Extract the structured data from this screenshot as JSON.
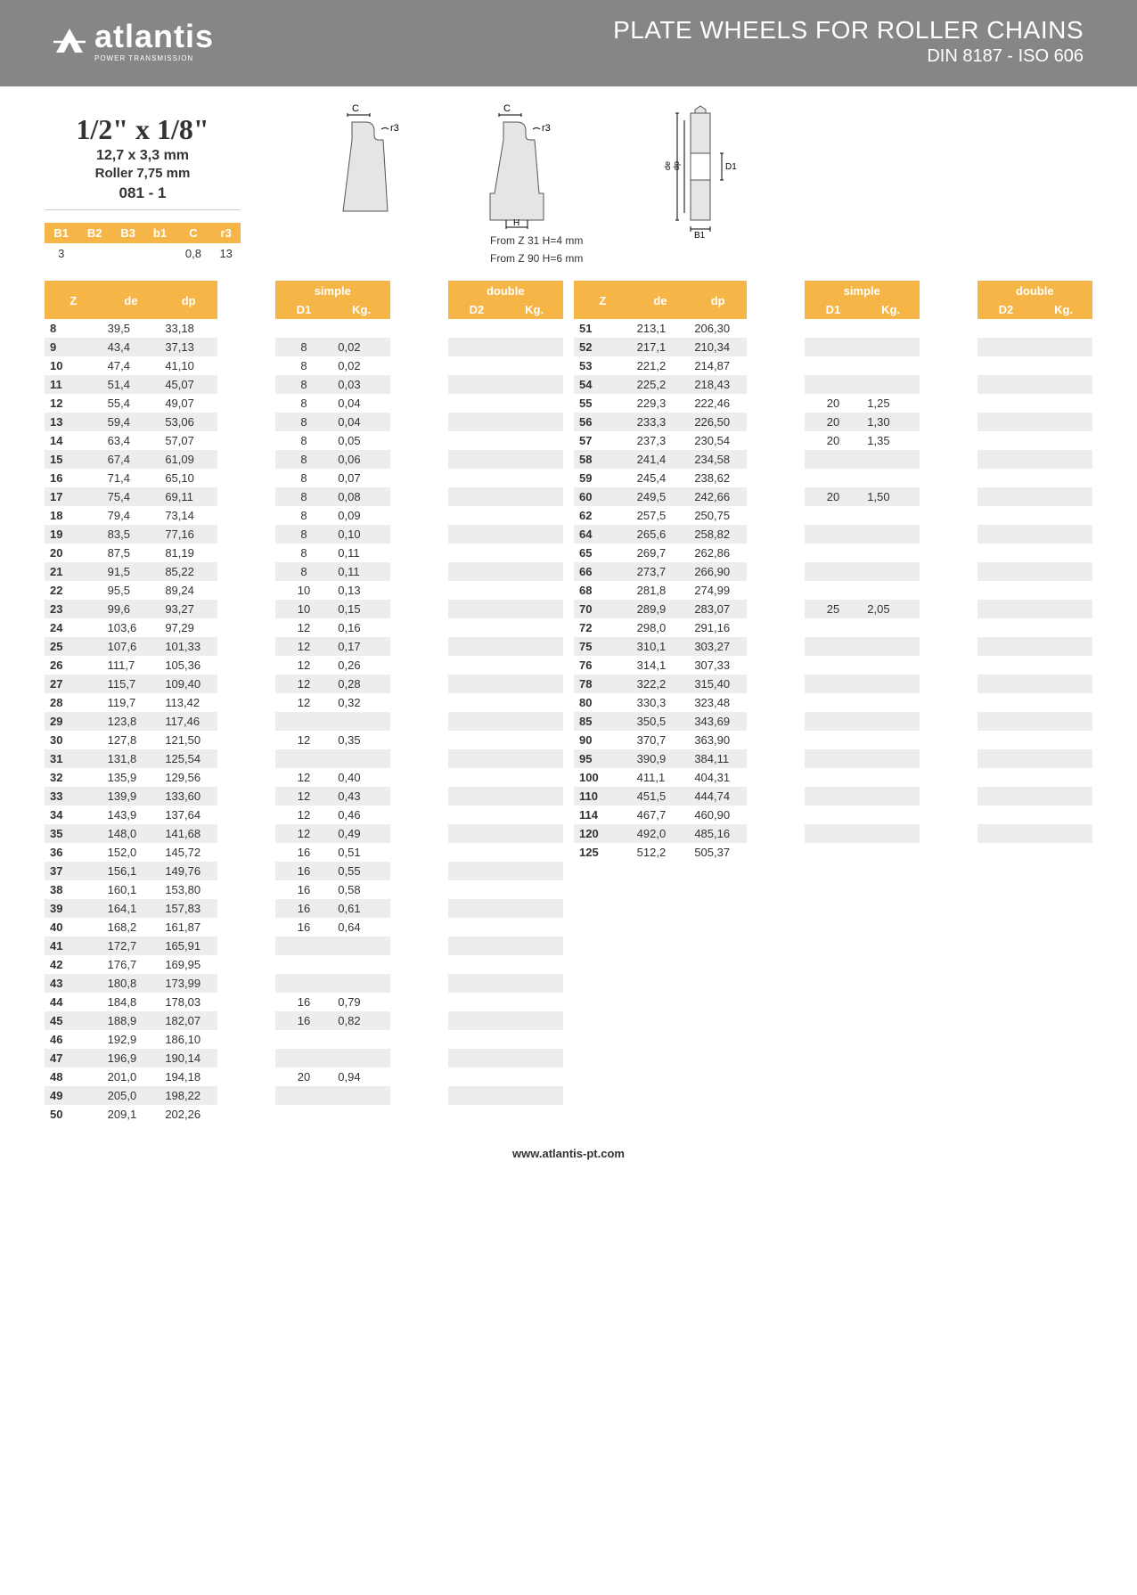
{
  "header": {
    "brand": "atlantis",
    "brand_sub": "POWER TRANSMISSION",
    "title": "PLATE WHEELS FOR ROLLER CHAINS",
    "subtitle": "DIN 8187 - ISO 606"
  },
  "spec": {
    "size": "1/2\" x 1/8\"",
    "mm": "12,7 x 3,3 mm",
    "roller": "Roller 7,75 mm",
    "code": "081 - 1"
  },
  "params": {
    "headers": [
      "B1",
      "B2",
      "B3",
      "b1",
      "C",
      "r3"
    ],
    "values": [
      "3",
      "",
      "",
      "",
      "0,8",
      "13"
    ]
  },
  "diagram_notes": {
    "n1": "From Z 31 H=4 mm",
    "n2": "From Z 90 H=6 mm"
  },
  "table_headers": {
    "z": "Z",
    "de": "de",
    "dp": "dp",
    "simple": "simple",
    "double": "double",
    "d1": "D1",
    "kg": "Kg.",
    "d2": "D2"
  },
  "left_rows": [
    {
      "z": "8",
      "de": "39,5",
      "dp": "33,18",
      "d1": "",
      "kg1": ""
    },
    {
      "z": "9",
      "de": "43,4",
      "dp": "37,13",
      "d1": "8",
      "kg1": "0,02"
    },
    {
      "z": "10",
      "de": "47,4",
      "dp": "41,10",
      "d1": "8",
      "kg1": "0,02"
    },
    {
      "z": "11",
      "de": "51,4",
      "dp": "45,07",
      "d1": "8",
      "kg1": "0,03"
    },
    {
      "z": "12",
      "de": "55,4",
      "dp": "49,07",
      "d1": "8",
      "kg1": "0,04"
    },
    {
      "z": "13",
      "de": "59,4",
      "dp": "53,06",
      "d1": "8",
      "kg1": "0,04"
    },
    {
      "z": "14",
      "de": "63,4",
      "dp": "57,07",
      "d1": "8",
      "kg1": "0,05"
    },
    {
      "z": "15",
      "de": "67,4",
      "dp": "61,09",
      "d1": "8",
      "kg1": "0,06"
    },
    {
      "z": "16",
      "de": "71,4",
      "dp": "65,10",
      "d1": "8",
      "kg1": "0,07"
    },
    {
      "z": "17",
      "de": "75,4",
      "dp": "69,11",
      "d1": "8",
      "kg1": "0,08"
    },
    {
      "z": "18",
      "de": "79,4",
      "dp": "73,14",
      "d1": "8",
      "kg1": "0,09"
    },
    {
      "z": "19",
      "de": "83,5",
      "dp": "77,16",
      "d1": "8",
      "kg1": "0,10"
    },
    {
      "z": "20",
      "de": "87,5",
      "dp": "81,19",
      "d1": "8",
      "kg1": "0,11"
    },
    {
      "z": "21",
      "de": "91,5",
      "dp": "85,22",
      "d1": "8",
      "kg1": "0,11"
    },
    {
      "z": "22",
      "de": "95,5",
      "dp": "89,24",
      "d1": "10",
      "kg1": "0,13"
    },
    {
      "z": "23",
      "de": "99,6",
      "dp": "93,27",
      "d1": "10",
      "kg1": "0,15"
    },
    {
      "z": "24",
      "de": "103,6",
      "dp": "97,29",
      "d1": "12",
      "kg1": "0,16"
    },
    {
      "z": "25",
      "de": "107,6",
      "dp": "101,33",
      "d1": "12",
      "kg1": "0,17"
    },
    {
      "z": "26",
      "de": "111,7",
      "dp": "105,36",
      "d1": "12",
      "kg1": "0,26"
    },
    {
      "z": "27",
      "de": "115,7",
      "dp": "109,40",
      "d1": "12",
      "kg1": "0,28"
    },
    {
      "z": "28",
      "de": "119,7",
      "dp": "113,42",
      "d1": "12",
      "kg1": "0,32"
    },
    {
      "z": "29",
      "de": "123,8",
      "dp": "117,46",
      "d1": "",
      "kg1": ""
    },
    {
      "z": "30",
      "de": "127,8",
      "dp": "121,50",
      "d1": "12",
      "kg1": "0,35"
    },
    {
      "z": "31",
      "de": "131,8",
      "dp": "125,54",
      "d1": "",
      "kg1": ""
    },
    {
      "z": "32",
      "de": "135,9",
      "dp": "129,56",
      "d1": "12",
      "kg1": "0,40"
    },
    {
      "z": "33",
      "de": "139,9",
      "dp": "133,60",
      "d1": "12",
      "kg1": "0,43"
    },
    {
      "z": "34",
      "de": "143,9",
      "dp": "137,64",
      "d1": "12",
      "kg1": "0,46"
    },
    {
      "z": "35",
      "de": "148,0",
      "dp": "141,68",
      "d1": "12",
      "kg1": "0,49"
    },
    {
      "z": "36",
      "de": "152,0",
      "dp": "145,72",
      "d1": "16",
      "kg1": "0,51"
    },
    {
      "z": "37",
      "de": "156,1",
      "dp": "149,76",
      "d1": "16",
      "kg1": "0,55"
    },
    {
      "z": "38",
      "de": "160,1",
      "dp": "153,80",
      "d1": "16",
      "kg1": "0,58"
    },
    {
      "z": "39",
      "de": "164,1",
      "dp": "157,83",
      "d1": "16",
      "kg1": "0,61"
    },
    {
      "z": "40",
      "de": "168,2",
      "dp": "161,87",
      "d1": "16",
      "kg1": "0,64"
    },
    {
      "z": "41",
      "de": "172,7",
      "dp": "165,91",
      "d1": "",
      "kg1": ""
    },
    {
      "z": "42",
      "de": "176,7",
      "dp": "169,95",
      "d1": "",
      "kg1": ""
    },
    {
      "z": "43",
      "de": "180,8",
      "dp": "173,99",
      "d1": "",
      "kg1": ""
    },
    {
      "z": "44",
      "de": "184,8",
      "dp": "178,03",
      "d1": "16",
      "kg1": "0,79"
    },
    {
      "z": "45",
      "de": "188,9",
      "dp": "182,07",
      "d1": "16",
      "kg1": "0,82"
    },
    {
      "z": "46",
      "de": "192,9",
      "dp": "186,10",
      "d1": "",
      "kg1": ""
    },
    {
      "z": "47",
      "de": "196,9",
      "dp": "190,14",
      "d1": "",
      "kg1": ""
    },
    {
      "z": "48",
      "de": "201,0",
      "dp": "194,18",
      "d1": "20",
      "kg1": "0,94"
    },
    {
      "z": "49",
      "de": "205,0",
      "dp": "198,22",
      "d1": "",
      "kg1": ""
    },
    {
      "z": "50",
      "de": "209,1",
      "dp": "202,26",
      "d1": "",
      "kg1": ""
    }
  ],
  "right_rows": [
    {
      "z": "51",
      "de": "213,1",
      "dp": "206,30",
      "d1": "",
      "kg1": ""
    },
    {
      "z": "52",
      "de": "217,1",
      "dp": "210,34",
      "d1": "",
      "kg1": ""
    },
    {
      "z": "53",
      "de": "221,2",
      "dp": "214,87",
      "d1": "",
      "kg1": ""
    },
    {
      "z": "54",
      "de": "225,2",
      "dp": "218,43",
      "d1": "",
      "kg1": ""
    },
    {
      "z": "55",
      "de": "229,3",
      "dp": "222,46",
      "d1": "20",
      "kg1": "1,25"
    },
    {
      "z": "56",
      "de": "233,3",
      "dp": "226,50",
      "d1": "20",
      "kg1": "1,30"
    },
    {
      "z": "57",
      "de": "237,3",
      "dp": "230,54",
      "d1": "20",
      "kg1": "1,35"
    },
    {
      "z": "58",
      "de": "241,4",
      "dp": "234,58",
      "d1": "",
      "kg1": ""
    },
    {
      "z": "59",
      "de": "245,4",
      "dp": "238,62",
      "d1": "",
      "kg1": ""
    },
    {
      "z": "60",
      "de": "249,5",
      "dp": "242,66",
      "d1": "20",
      "kg1": "1,50"
    },
    {
      "z": "62",
      "de": "257,5",
      "dp": "250,75",
      "d1": "",
      "kg1": ""
    },
    {
      "z": "64",
      "de": "265,6",
      "dp": "258,82",
      "d1": "",
      "kg1": ""
    },
    {
      "z": "65",
      "de": "269,7",
      "dp": "262,86",
      "d1": "",
      "kg1": ""
    },
    {
      "z": "66",
      "de": "273,7",
      "dp": "266,90",
      "d1": "",
      "kg1": ""
    },
    {
      "z": "68",
      "de": "281,8",
      "dp": "274,99",
      "d1": "",
      "kg1": ""
    },
    {
      "z": "70",
      "de": "289,9",
      "dp": "283,07",
      "d1": "25",
      "kg1": "2,05"
    },
    {
      "z": "72",
      "de": "298,0",
      "dp": "291,16",
      "d1": "",
      "kg1": ""
    },
    {
      "z": "75",
      "de": "310,1",
      "dp": "303,27",
      "d1": "",
      "kg1": ""
    },
    {
      "z": "76",
      "de": "314,1",
      "dp": "307,33",
      "d1": "",
      "kg1": ""
    },
    {
      "z": "78",
      "de": "322,2",
      "dp": "315,40",
      "d1": "",
      "kg1": ""
    },
    {
      "z": "80",
      "de": "330,3",
      "dp": "323,48",
      "d1": "",
      "kg1": ""
    },
    {
      "z": "85",
      "de": "350,5",
      "dp": "343,69",
      "d1": "",
      "kg1": ""
    },
    {
      "z": "90",
      "de": "370,7",
      "dp": "363,90",
      "d1": "",
      "kg1": ""
    },
    {
      "z": "95",
      "de": "390,9",
      "dp": "384,11",
      "d1": "",
      "kg1": ""
    },
    {
      "z": "100",
      "de": "411,1",
      "dp": "404,31",
      "d1": "",
      "kg1": ""
    },
    {
      "z": "110",
      "de": "451,5",
      "dp": "444,74",
      "d1": "",
      "kg1": ""
    },
    {
      "z": "114",
      "de": "467,7",
      "dp": "460,90",
      "d1": "",
      "kg1": ""
    },
    {
      "z": "120",
      "de": "492,0",
      "dp": "485,16",
      "d1": "",
      "kg1": ""
    },
    {
      "z": "125",
      "de": "512,2",
      "dp": "505,37",
      "d1": "",
      "kg1": ""
    }
  ],
  "footer": "www.atlantis-pt.com",
  "colors": {
    "header_bg": "#868686",
    "accent": "#f5b547",
    "row_alt": "#ededed"
  }
}
